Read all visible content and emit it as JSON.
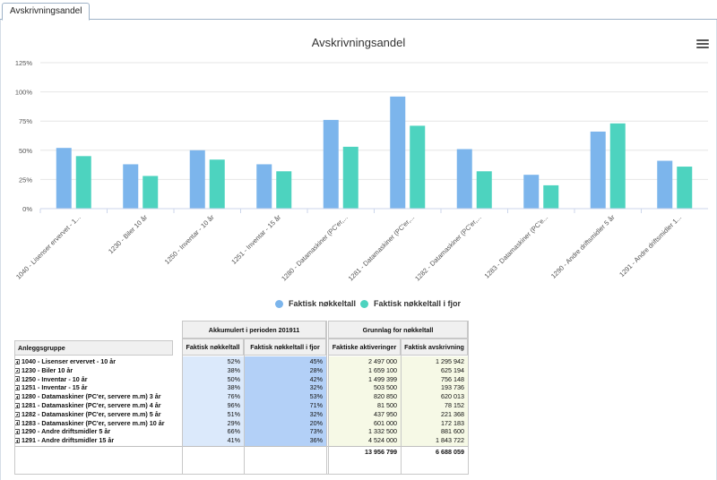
{
  "tab": {
    "label": "Avskrivningsandel"
  },
  "chart_data": {
    "type": "bar",
    "title": "Avskrivningsandel",
    "categories": [
      "1040 - Lisenser ervervet - 1...",
      "1230 - Biler 10 år",
      "1250 - Inventar - 10 år",
      "1251 - Inventar - 15 år",
      "1280 - Datamaskiner (PC'er,...",
      "1281 - Datamaskiner (PC'er,...",
      "1282 - Datamaskiner (PC'er,...",
      "1283 - Datamaskiner (PC'e...",
      "1290 - Andre driftsmidler 5 år",
      "1291 - Andre driftsmidler 1..."
    ],
    "series": [
      {
        "name": "Faktisk nøkkeltall",
        "color": "#7cb5ec",
        "values": [
          52,
          38,
          50,
          38,
          76,
          96,
          51,
          29,
          66,
          41
        ]
      },
      {
        "name": "Faktisk nøkkeltall i fjor",
        "color": "#4dd3bf",
        "values": [
          45,
          28,
          42,
          32,
          53,
          71,
          32,
          20,
          73,
          36
        ]
      }
    ],
    "yticks": [
      "0%",
      "25%",
      "50%",
      "75%",
      "100%",
      "125%"
    ],
    "ylim": [
      0,
      125
    ],
    "grid": true,
    "legend_position": "bottom-center"
  },
  "menu_icon": "hamburger-menu-icon",
  "table": {
    "group_header": "Anleggsgruppe",
    "section1_title": "Akkumulert i perioden 201911",
    "section2_title": "Grunnlag for nøkkeltall",
    "columns": [
      "Faktisk nøkkeltall",
      "Faktisk nøkkeltall i fjor",
      "Faktiske aktiveringer",
      "Faktisk avskrivning"
    ],
    "rows": [
      {
        "label": "1040 - Lisenser ervervet - 10 år",
        "v1": "52%",
        "v2": "45%",
        "v3": "2 497 000",
        "v4": "1 295 942"
      },
      {
        "label": "1230 - Biler 10 år",
        "v1": "38%",
        "v2": "28%",
        "v3": "1 659 100",
        "v4": "625 194"
      },
      {
        "label": "1250 - Inventar - 10 år",
        "v1": "50%",
        "v2": "42%",
        "v3": "1 499 399",
        "v4": "756 148"
      },
      {
        "label": "1251 - Inventar - 15 år",
        "v1": "38%",
        "v2": "32%",
        "v3": "503 500",
        "v4": "193 736"
      },
      {
        "label": "1280 - Datamaskiner (PC'er, servere m.m) 3 år",
        "v1": "76%",
        "v2": "53%",
        "v3": "820 850",
        "v4": "620 013"
      },
      {
        "label": "1281 - Datamaskiner (PC'er, servere m.m) 4 år",
        "v1": "96%",
        "v2": "71%",
        "v3": "81 500",
        "v4": "78 152"
      },
      {
        "label": "1282 - Datamaskiner (PC'er, servere m.m) 5 år",
        "v1": "51%",
        "v2": "32%",
        "v3": "437 950",
        "v4": "221 368"
      },
      {
        "label": "1283 - Datamaskiner (PC'er, servere m.m) 10 år",
        "v1": "29%",
        "v2": "20%",
        "v3": "601 000",
        "v4": "172 183"
      },
      {
        "label": "1290 - Andre driftsmidler 5 år",
        "v1": "66%",
        "v2": "73%",
        "v3": "1 332 500",
        "v4": "881 600"
      },
      {
        "label": "1291 - Andre driftsmidler 15 år",
        "v1": "41%",
        "v2": "36%",
        "v3": "4 524 000",
        "v4": "1 843 722"
      }
    ],
    "totals": {
      "v3": "13 956 799",
      "v4": "6 688 059"
    },
    "colors": {
      "col1_bg": "#dbe9fb",
      "col2_bg": "#b3d0f7",
      "col34_bg": "#f6f9e6"
    }
  }
}
